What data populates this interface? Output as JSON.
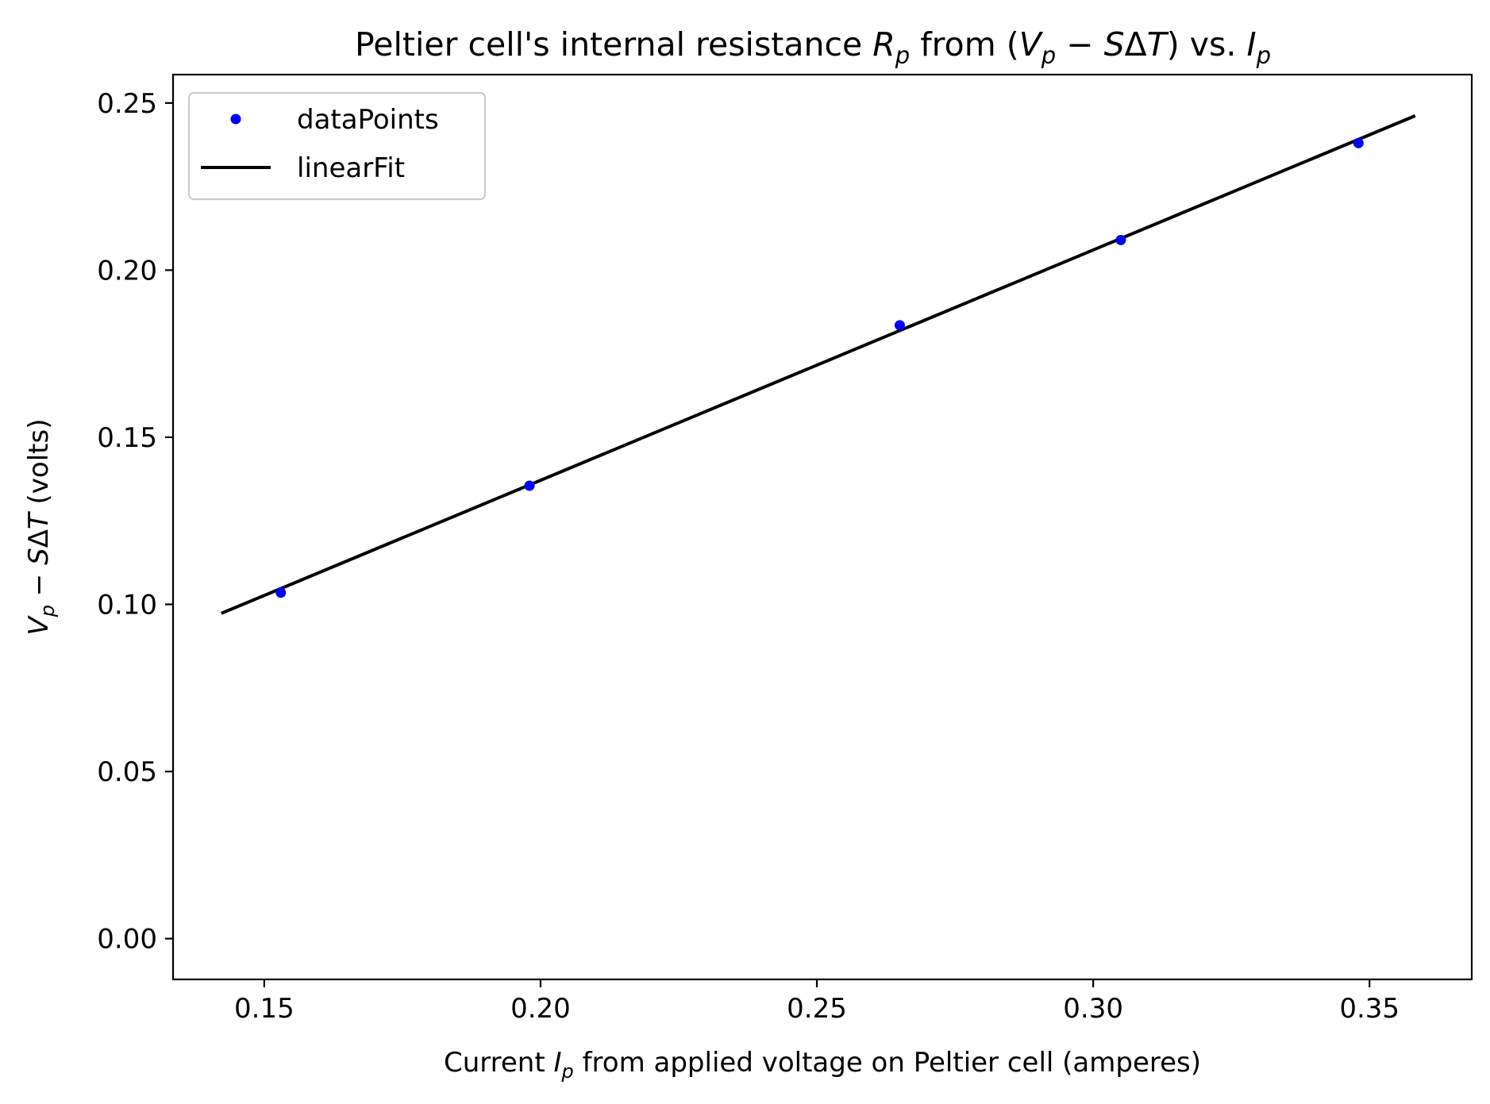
{
  "chart_data": {
    "type": "scatter",
    "title": {
      "prefix": "Peltier cell's internal resistance ",
      "r_var": "R",
      "r_sub": "p",
      "mid": " from (",
      "v_var": "V",
      "v_sub": "p",
      "minus": " − ",
      "s_var": "S",
      "delta": "Δ",
      "t_var": "T",
      "close": ") vs. ",
      "i_var": "I",
      "i_sub": "p"
    },
    "xlabel": {
      "prefix": "Current ",
      "var": "I",
      "sub": "p",
      "suffix": " from applied voltage on Peltier cell (amperes)"
    },
    "ylabel": {
      "v_var": "V",
      "v_sub": "p",
      "minus": " − ",
      "s_var": "S",
      "delta": "Δ",
      "t_var": "T",
      "suffix": " (volts)"
    },
    "xlim": [
      0.1335,
      0.3685
    ],
    "ylim": [
      -0.0122,
      0.2585
    ],
    "xticks": [
      "0.15",
      "0.20",
      "0.25",
      "0.30",
      "0.35"
    ],
    "yticks": [
      "0.00",
      "0.05",
      "0.10",
      "0.15",
      "0.20",
      "0.25"
    ],
    "grid": false,
    "legend_position": "top-left",
    "series": [
      {
        "name": "dataPoints",
        "type": "scatter",
        "color": "#0000ff",
        "x": [
          0.153,
          0.198,
          0.265,
          0.305,
          0.348
        ],
        "y": [
          0.1035,
          0.1355,
          0.1835,
          0.209,
          0.238
        ]
      },
      {
        "name": "linearFit",
        "type": "line",
        "color": "#000000",
        "x": [
          0.1425,
          0.358
        ],
        "y": [
          0.0975,
          0.246
        ]
      }
    ]
  }
}
